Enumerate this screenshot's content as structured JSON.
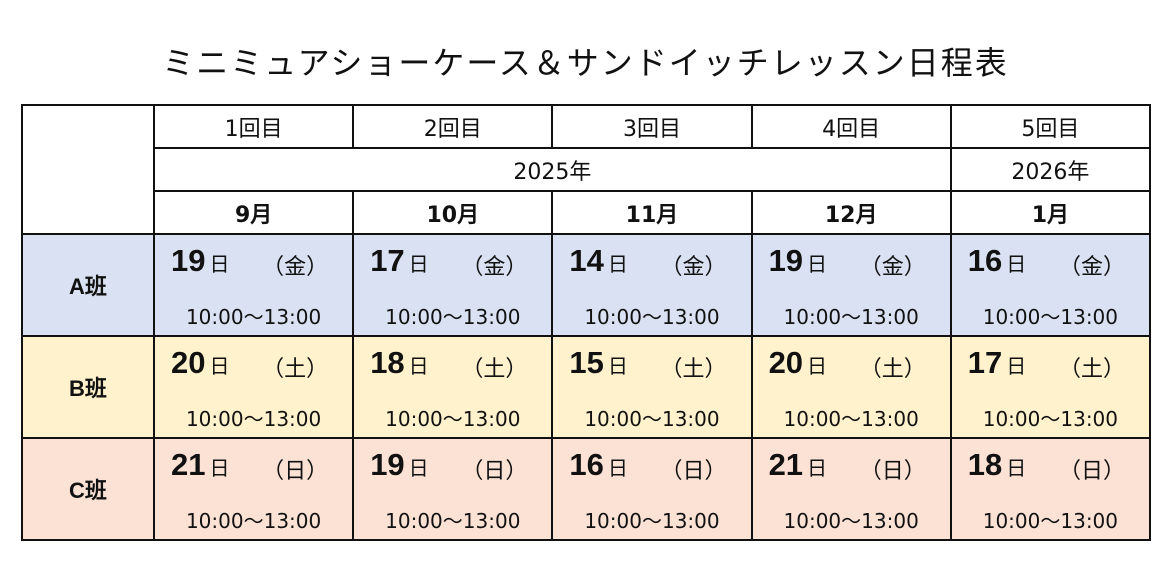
{
  "title": "ミニミュアショーケース＆サンドイッチレッスン日程表",
  "sessions": [
    "1回目",
    "2回目",
    "3回目",
    "4回目",
    "5回目"
  ],
  "years": [
    "2025年",
    "2026年"
  ],
  "months": [
    "9月",
    "10月",
    "11月",
    "12月",
    "1月"
  ],
  "day_unit": "日",
  "groups": [
    {
      "name": "A班",
      "color": "#d9e1f2",
      "cells": [
        {
          "day": "19",
          "dow": "（金）",
          "time": "10:00〜13:00"
        },
        {
          "day": "17",
          "dow": "（金）",
          "time": "10:00〜13:00"
        },
        {
          "day": "14",
          "dow": "（金）",
          "time": "10:00〜13:00"
        },
        {
          "day": "19",
          "dow": "（金）",
          "time": "10:00〜13:00"
        },
        {
          "day": "16",
          "dow": "（金）",
          "time": "10:00〜13:00"
        }
      ]
    },
    {
      "name": "B班",
      "color": "#fff2cc",
      "cells": [
        {
          "day": "20",
          "dow": "（土）",
          "time": "10:00〜13:00"
        },
        {
          "day": "18",
          "dow": "（土）",
          "time": "10:00〜13:00"
        },
        {
          "day": "15",
          "dow": "（土）",
          "time": "10:00〜13:00"
        },
        {
          "day": "20",
          "dow": "（土）",
          "time": "10:00〜13:00"
        },
        {
          "day": "17",
          "dow": "（土）",
          "time": "10:00〜13:00"
        }
      ]
    },
    {
      "name": "C班",
      "color": "#fbe2d5",
      "cells": [
        {
          "day": "21",
          "dow": "（日）",
          "time": "10:00〜13:00"
        },
        {
          "day": "19",
          "dow": "（日）",
          "time": "10:00〜13:00"
        },
        {
          "day": "16",
          "dow": "（日）",
          "time": "10:00〜13:00"
        },
        {
          "day": "21",
          "dow": "（日）",
          "time": "10:00〜13:00"
        },
        {
          "day": "18",
          "dow": "（日）",
          "time": "10:00〜13:00"
        }
      ]
    }
  ]
}
